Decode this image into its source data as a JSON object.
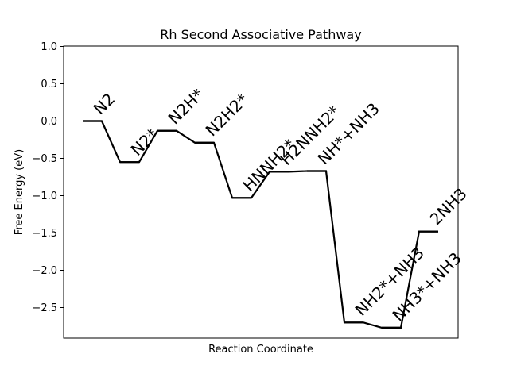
{
  "chart_data": {
    "type": "line",
    "title": "Rh Second Associative Pathway",
    "xlabel": "Reaction Coordinate",
    "ylabel": "Free Energy (eV)",
    "ylim": [
      -2.9,
      1.0
    ],
    "yticks": [
      1.0,
      0.5,
      0.0,
      -0.5,
      -1.0,
      -1.5,
      -2.0,
      -2.5
    ],
    "ytick_labels": [
      "1.0",
      "0.5",
      "0.0",
      "−0.5",
      "−1.0",
      "−1.5",
      "−2.0",
      "−2.5"
    ],
    "grid": false,
    "series": [
      {
        "name": "Rh",
        "color": "#000000",
        "steps": [
          {
            "label": "N2",
            "energy": 0.0
          },
          {
            "label": "N2*",
            "energy": -0.55
          },
          {
            "label": "N2H*",
            "energy": -0.13
          },
          {
            "label": "N2H2*",
            "energy": -0.29
          },
          {
            "label": "HNNH2*",
            "energy": -1.03
          },
          {
            "label": "H2NNH2*",
            "energy": -0.68
          },
          {
            "label": "NH*+NH3",
            "energy": -0.67
          },
          {
            "label": "NH2*+NH3",
            "energy": -2.7
          },
          {
            "label": "NH3*+NH3",
            "energy": -2.77
          },
          {
            "label": "2NH3",
            "energy": -1.48
          }
        ]
      }
    ]
  }
}
